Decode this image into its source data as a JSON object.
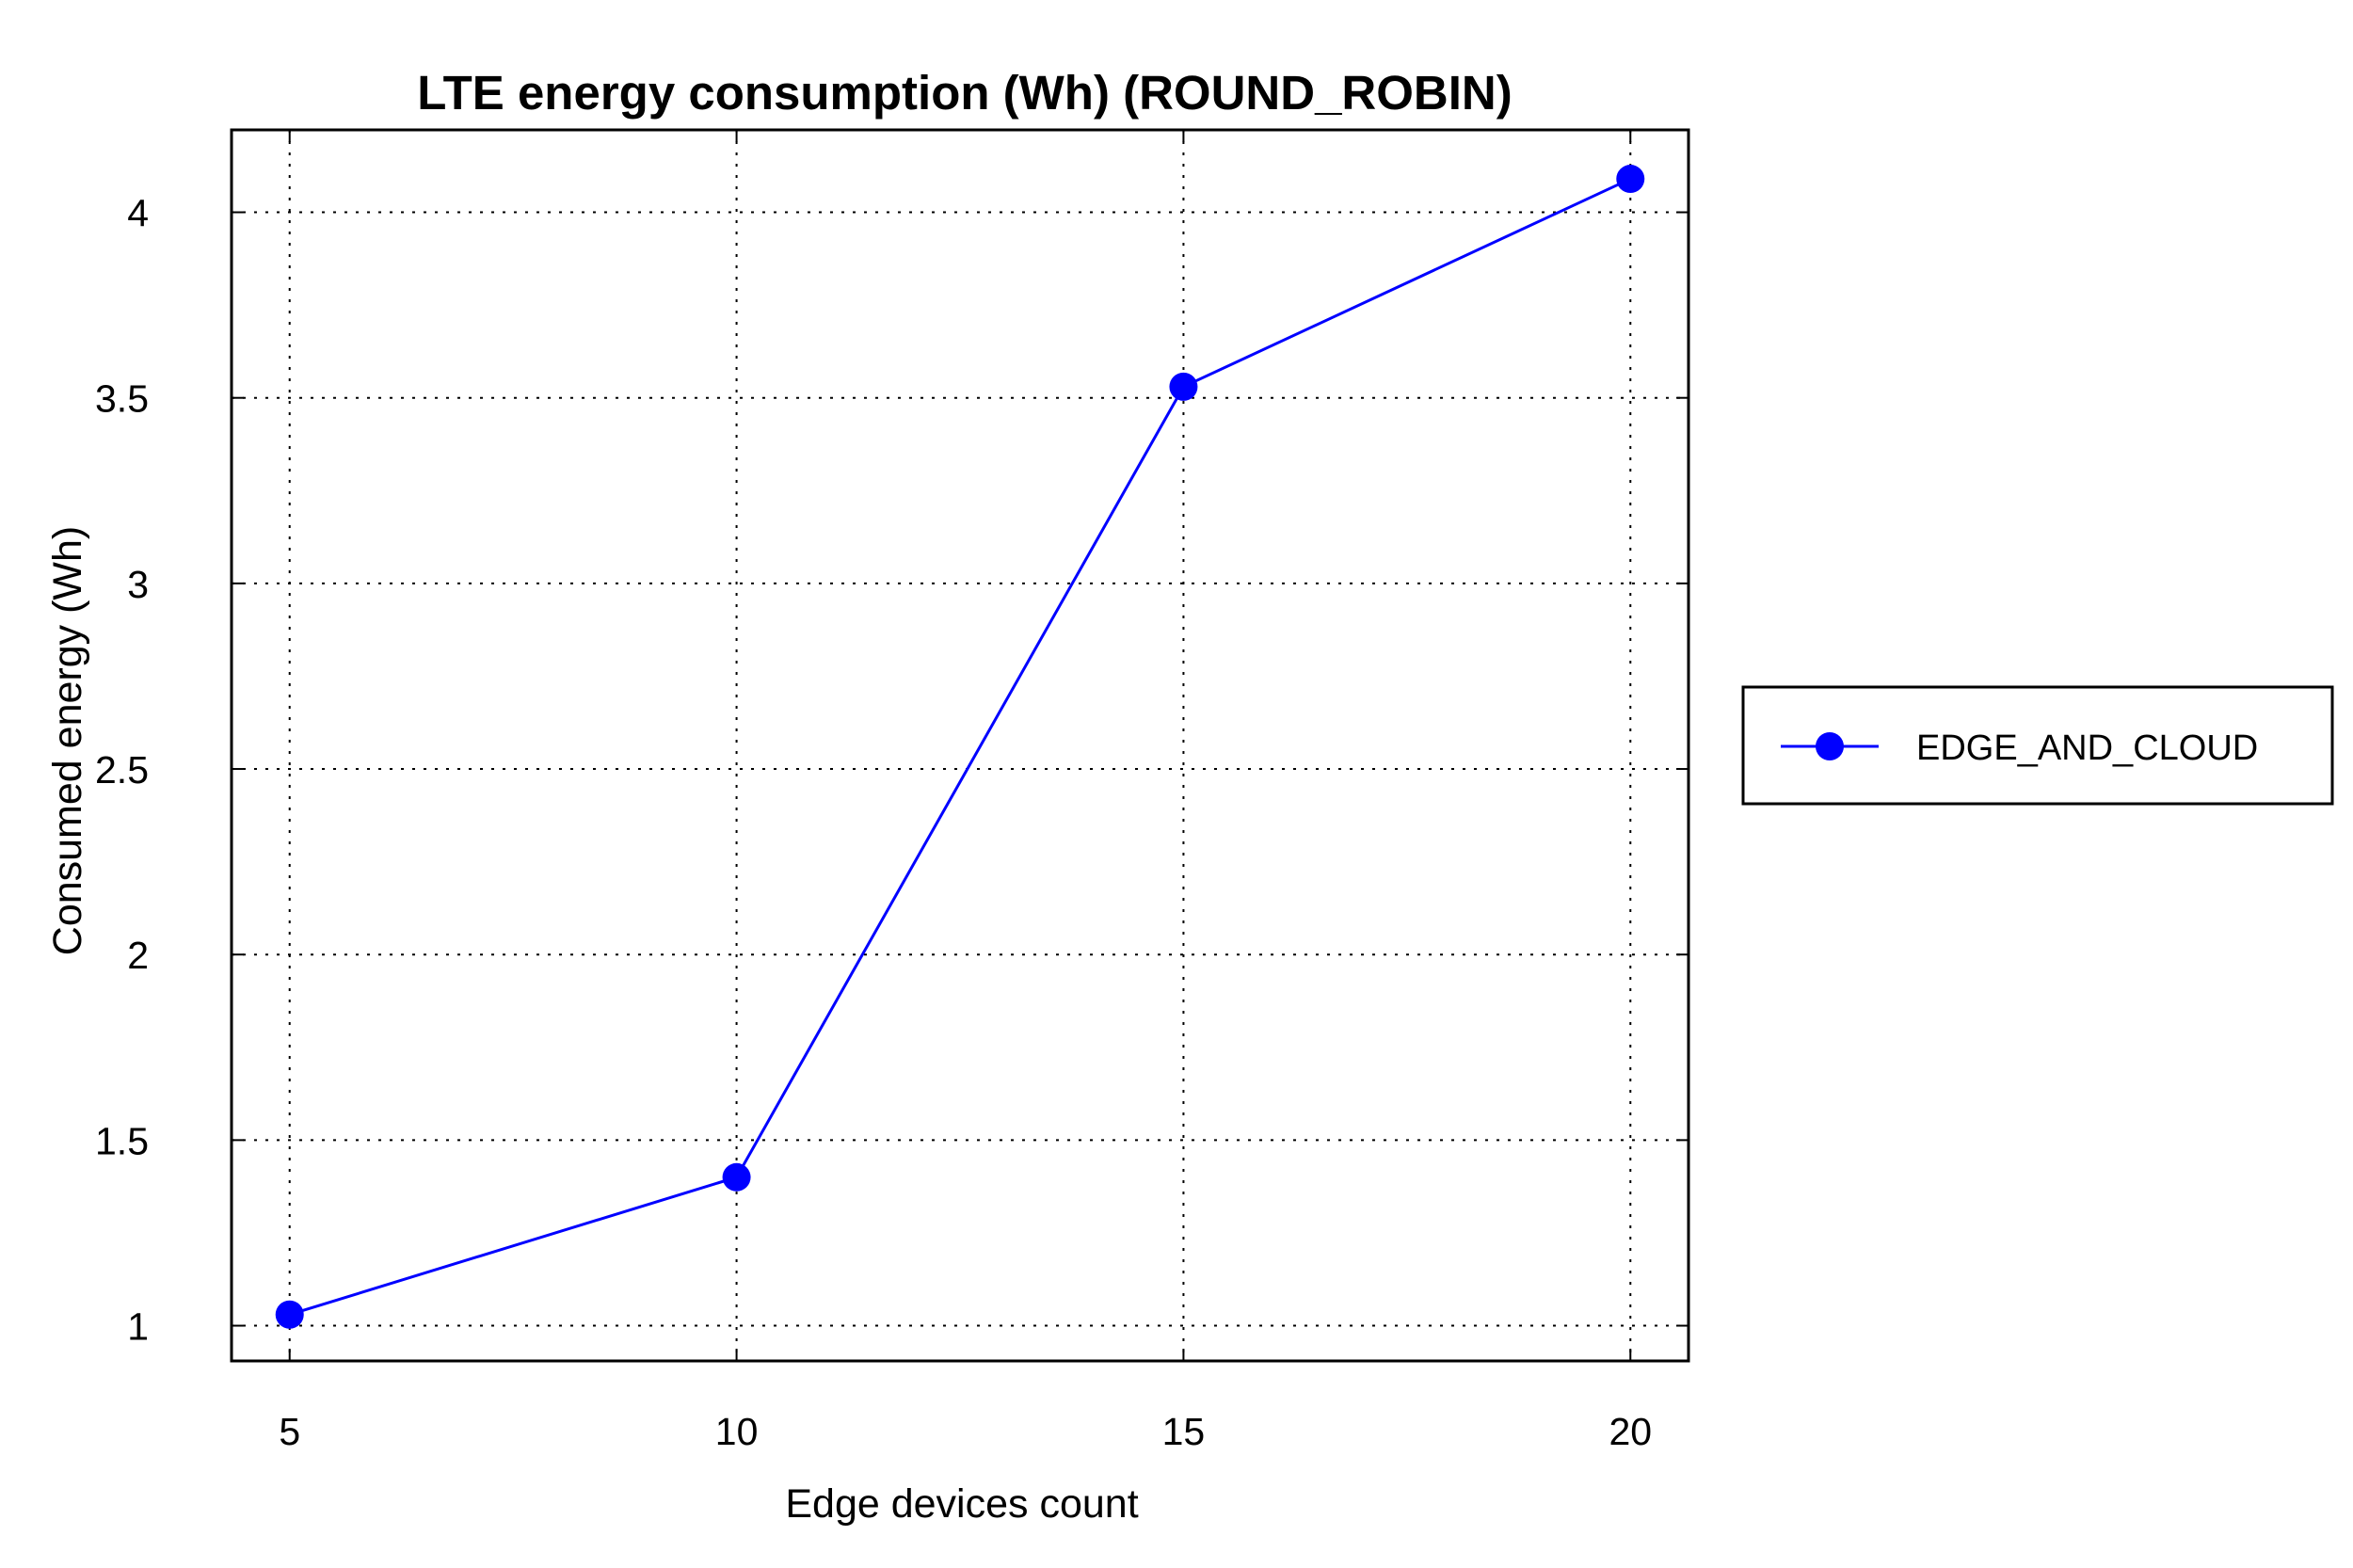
{
  "chart_data": {
    "type": "line",
    "title": "LTE energy consumption (Wh) (ROUND_ROBIN)",
    "xlabel": "Edge devices count",
    "ylabel": "Consumed energy (Wh)",
    "x": [
      5,
      10,
      15,
      20
    ],
    "x_ticks": [
      "5",
      "10",
      "15",
      "20"
    ],
    "y_ticks": [
      "1",
      "1.5",
      "2",
      "2.5",
      "3",
      "3.5",
      "4"
    ],
    "xlim": [
      4.35,
      20.65
    ],
    "ylim": [
      0.905,
      4.222
    ],
    "grid": true,
    "legend_position": "outside-right",
    "series": [
      {
        "name": "EDGE_AND_CLOUD",
        "values": [
          1.03,
          1.4,
          3.53,
          4.09
        ],
        "color": "#0000ff",
        "marker": "circle"
      }
    ]
  }
}
